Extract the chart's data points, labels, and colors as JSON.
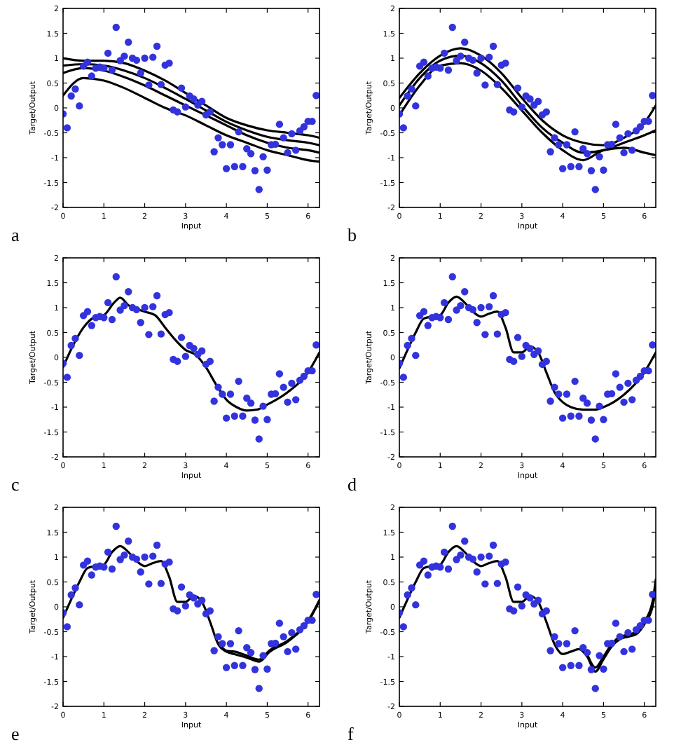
{
  "chart_data": [
    {
      "type": "scatter",
      "title": "a",
      "xlabel": "Input",
      "ylabel": "Target/Output",
      "xlim": [
        0,
        6.28
      ],
      "ylim": [
        -2,
        2
      ],
      "xticks": [
        0,
        1,
        2,
        3,
        4,
        5,
        6
      ],
      "yticks": [
        -2,
        -1.5,
        -1,
        -0.5,
        0,
        0.5,
        1,
        1.5,
        2
      ],
      "grid": false,
      "x": [
        0,
        0.1,
        0.2,
        0.3,
        0.4,
        0.5,
        0.6,
        0.7,
        0.8,
        0.9,
        1,
        1.1,
        1.2,
        1.3,
        1.4,
        1.5,
        1.6,
        1.7,
        1.8,
        1.9,
        2,
        2.1,
        2.2,
        2.3,
        2.4,
        2.5,
        2.6,
        2.7,
        2.8,
        2.9,
        3,
        3.1,
        3.2,
        3.3,
        3.4,
        3.5,
        3.6,
        3.7,
        3.8,
        3.9,
        4,
        4.1,
        4.2,
        4.3,
        4.4,
        4.5,
        4.6,
        4.7,
        4.8,
        4.9,
        5,
        5.1,
        5.2,
        5.3,
        5.4,
        5.5,
        5.6,
        5.7,
        5.8,
        5.9,
        6,
        6.1,
        6.2
      ],
      "series": [
        {
          "type": "line",
          "color": "#000000",
          "x": [
            0,
            0.5,
            1,
            1.5,
            2,
            2.5,
            3,
            3.5,
            4,
            4.5,
            5,
            5.5,
            6,
            6.28
          ],
          "values": [
            1.0,
            0.95,
            0.95,
            0.9,
            0.75,
            0.55,
            0.3,
            0.05,
            -0.2,
            -0.35,
            -0.45,
            -0.5,
            -0.55,
            -0.6
          ]
        },
        {
          "type": "line",
          "color": "#000000",
          "x": [
            0,
            0.5,
            1,
            1.5,
            2,
            2.5,
            3,
            3.5,
            4,
            4.5,
            5,
            5.5,
            6,
            6.28
          ],
          "values": [
            0.85,
            0.88,
            0.85,
            0.75,
            0.6,
            0.4,
            0.18,
            -0.05,
            -0.28,
            -0.45,
            -0.58,
            -0.65,
            -0.7,
            -0.75
          ]
        },
        {
          "type": "line",
          "color": "#000000",
          "x": [
            0,
            0.5,
            1,
            1.5,
            2,
            2.5,
            3,
            3.5,
            4,
            4.5,
            5,
            5.5,
            6,
            6.28
          ],
          "values": [
            0.7,
            0.8,
            0.75,
            0.62,
            0.45,
            0.25,
            0.05,
            -0.15,
            -0.35,
            -0.55,
            -0.7,
            -0.8,
            -0.85,
            -0.9
          ]
        },
        {
          "type": "line",
          "color": "#000000",
          "x": [
            0,
            0.5,
            1,
            1.5,
            2,
            2.5,
            3,
            3.5,
            4,
            4.5,
            5,
            5.5,
            6,
            6.28
          ],
          "values": [
            0.25,
            0.6,
            0.55,
            0.4,
            0.2,
            0.0,
            -0.15,
            -0.35,
            -0.55,
            -0.7,
            -0.85,
            -0.95,
            -1.05,
            -1.08
          ]
        },
        {
          "marker": "circle",
          "color": "#3333dd",
          "values": [
            -0.12,
            -0.4,
            0.24,
            0.38,
            0.04,
            0.84,
            0.92,
            0.64,
            0.8,
            0.82,
            0.8,
            1.1,
            0.76,
            1.62,
            0.95,
            1.04,
            1.32,
            1.0,
            0.96,
            0.7,
            1.0,
            0.46,
            1.02,
            1.24,
            0.47,
            0.86,
            0.9,
            -0.04,
            -0.08,
            0.4,
            0.02,
            0.24,
            0.18,
            0.06,
            0.13,
            -0.14,
            -0.08,
            -0.88,
            -0.6,
            -0.74,
            -1.22,
            -0.74,
            -1.18,
            -0.48,
            -1.18,
            -0.82,
            -0.92,
            -1.26,
            -1.64,
            -0.98,
            -1.25,
            -0.74,
            -0.73,
            -0.33,
            -0.6,
            -0.9,
            -0.52,
            -0.85,
            -0.46,
            -0.38,
            -0.27,
            -0.27,
            0.25
          ]
        }
      ]
    },
    {
      "type": "scatter",
      "title": "b",
      "xlabel": "Input",
      "ylabel": "Target/Output",
      "xlim": [
        0,
        6.28
      ],
      "ylim": [
        -2,
        2
      ],
      "xticks": [
        0,
        1,
        2,
        3,
        4,
        5,
        6
      ],
      "yticks": [
        -2,
        -1.5,
        -1,
        -0.5,
        0,
        0.5,
        1,
        1.5,
        2
      ],
      "grid": false,
      "x": [
        0,
        0.1,
        0.2,
        0.3,
        0.4,
        0.5,
        0.6,
        0.7,
        0.8,
        0.9,
        1,
        1.1,
        1.2,
        1.3,
        1.4,
        1.5,
        1.6,
        1.7,
        1.8,
        1.9,
        2,
        2.1,
        2.2,
        2.3,
        2.4,
        2.5,
        2.6,
        2.7,
        2.8,
        2.9,
        3,
        3.1,
        3.2,
        3.3,
        3.4,
        3.5,
        3.6,
        3.7,
        3.8,
        3.9,
        4,
        4.1,
        4.2,
        4.3,
        4.4,
        4.5,
        4.6,
        4.7,
        4.8,
        4.9,
        5,
        5.1,
        5.2,
        5.3,
        5.4,
        5.5,
        5.6,
        5.7,
        5.8,
        5.9,
        6,
        6.1,
        6.2
      ],
      "series": [
        {
          "type": "line",
          "color": "#000000",
          "x": [
            0,
            0.5,
            1,
            1.5,
            2,
            2.5,
            3,
            3.5,
            4,
            4.5,
            5,
            5.5,
            6,
            6.28
          ],
          "values": [
            0.2,
            0.7,
            1.05,
            1.2,
            1.05,
            0.7,
            0.2,
            -0.25,
            -0.55,
            -0.7,
            -0.75,
            -0.6,
            -0.3,
            0.05
          ]
        },
        {
          "type": "line",
          "color": "#000000",
          "x": [
            0,
            0.5,
            1,
            1.5,
            2,
            2.5,
            3,
            3.5,
            4,
            4.5,
            5,
            5.5,
            6,
            6.28
          ],
          "values": [
            0.05,
            0.6,
            0.95,
            1.05,
            0.9,
            0.55,
            0.05,
            -0.4,
            -0.7,
            -0.9,
            -0.85,
            -0.7,
            -0.55,
            -0.45
          ]
        },
        {
          "type": "line",
          "color": "#000000",
          "x": [
            0,
            0.5,
            1,
            1.5,
            2,
            2.5,
            3,
            3.5,
            4,
            4.5,
            5,
            5.5,
            6,
            6.28
          ],
          "values": [
            -0.15,
            0.45,
            0.85,
            0.9,
            0.75,
            0.4,
            -0.05,
            -0.5,
            -0.85,
            -1.05,
            -0.85,
            -0.8,
            -0.9,
            -0.95
          ]
        },
        {
          "marker": "circle",
          "color": "#3333dd",
          "values": [
            -0.12,
            -0.4,
            0.24,
            0.38,
            0.04,
            0.84,
            0.92,
            0.64,
            0.8,
            0.82,
            0.8,
            1.1,
            0.76,
            1.62,
            0.95,
            1.04,
            1.32,
            1.0,
            0.96,
            0.7,
            1.0,
            0.46,
            1.02,
            1.24,
            0.47,
            0.86,
            0.9,
            -0.04,
            -0.08,
            0.4,
            0.02,
            0.24,
            0.18,
            0.06,
            0.13,
            -0.14,
            -0.08,
            -0.88,
            -0.6,
            -0.74,
            -1.22,
            -0.74,
            -1.18,
            -0.48,
            -1.18,
            -0.82,
            -0.92,
            -1.26,
            -1.64,
            -0.98,
            -1.25,
            -0.74,
            -0.73,
            -0.33,
            -0.6,
            -0.9,
            -0.52,
            -0.85,
            -0.46,
            -0.38,
            -0.27,
            -0.27,
            0.25
          ]
        }
      ]
    },
    {
      "type": "scatter",
      "title": "c",
      "xlabel": "Input",
      "ylabel": "Target/Output",
      "xlim": [
        0,
        6.28
      ],
      "ylim": [
        -2,
        2
      ],
      "xticks": [
        0,
        1,
        2,
        3,
        4,
        5,
        6
      ],
      "yticks": [
        -2,
        -1.5,
        -1,
        -0.5,
        0,
        0.5,
        1,
        1.5,
        2
      ],
      "grid": false,
      "x": [
        0,
        0.1,
        0.2,
        0.3,
        0.4,
        0.5,
        0.6,
        0.7,
        0.8,
        0.9,
        1,
        1.1,
        1.2,
        1.3,
        1.4,
        1.5,
        1.6,
        1.7,
        1.8,
        1.9,
        2,
        2.1,
        2.2,
        2.3,
        2.4,
        2.5,
        2.6,
        2.7,
        2.8,
        2.9,
        3,
        3.1,
        3.2,
        3.3,
        3.4,
        3.5,
        3.6,
        3.7,
        3.8,
        3.9,
        4,
        4.1,
        4.2,
        4.3,
        4.4,
        4.5,
        4.6,
        4.7,
        4.8,
        4.9,
        5,
        5.1,
        5.2,
        5.3,
        5.4,
        5.5,
        5.6,
        5.7,
        5.8,
        5.9,
        6,
        6.1,
        6.2
      ],
      "series": [
        {
          "type": "line",
          "color": "#000000",
          "x": [
            0,
            0.25,
            0.5,
            0.75,
            1,
            1.25,
            1.4,
            1.6,
            2,
            2.25,
            2.5,
            2.75,
            3,
            3.25,
            3.5,
            3.75,
            4,
            4.25,
            4.5,
            4.75,
            5,
            5.5,
            6,
            6.28
          ],
          "values": [
            -0.2,
            0.25,
            0.6,
            0.8,
            0.85,
            1.1,
            1.2,
            1.05,
            0.92,
            0.85,
            0.6,
            0.35,
            0.15,
            0.05,
            -0.2,
            -0.55,
            -0.85,
            -1.0,
            -1.07,
            -1.05,
            -0.95,
            -0.7,
            -0.3,
            0.1
          ]
        },
        {
          "marker": "circle",
          "color": "#3333dd",
          "values": [
            -0.12,
            -0.4,
            0.24,
            0.38,
            0.04,
            0.84,
            0.92,
            0.64,
            0.8,
            0.82,
            0.8,
            1.1,
            0.76,
            1.62,
            0.95,
            1.04,
            1.32,
            1.0,
            0.96,
            0.7,
            1.0,
            0.46,
            1.02,
            1.24,
            0.47,
            0.86,
            0.9,
            -0.04,
            -0.08,
            0.4,
            0.02,
            0.24,
            0.18,
            0.06,
            0.13,
            -0.14,
            -0.08,
            -0.88,
            -0.6,
            -0.74,
            -1.22,
            -0.74,
            -1.18,
            -0.48,
            -1.18,
            -0.82,
            -0.92,
            -1.26,
            -1.64,
            -0.98,
            -1.25,
            -0.74,
            -0.73,
            -0.33,
            -0.6,
            -0.9,
            -0.52,
            -0.85,
            -0.46,
            -0.38,
            -0.27,
            -0.27,
            0.25
          ]
        }
      ]
    },
    {
      "type": "scatter",
      "title": "d",
      "xlabel": "Input",
      "ylabel": "Target/Output",
      "xlim": [
        0,
        6.28
      ],
      "ylim": [
        -2,
        2
      ],
      "xticks": [
        0,
        1,
        2,
        3,
        4,
        5,
        6
      ],
      "yticks": [
        -2,
        -1.5,
        -1,
        -0.5,
        0,
        0.5,
        1,
        1.5,
        2
      ],
      "grid": false,
      "x": [
        0,
        0.1,
        0.2,
        0.3,
        0.4,
        0.5,
        0.6,
        0.7,
        0.8,
        0.9,
        1,
        1.1,
        1.2,
        1.3,
        1.4,
        1.5,
        1.6,
        1.7,
        1.8,
        1.9,
        2,
        2.1,
        2.2,
        2.3,
        2.4,
        2.5,
        2.6,
        2.7,
        2.8,
        2.9,
        3,
        3.1,
        3.2,
        3.3,
        3.4,
        3.5,
        3.6,
        3.7,
        3.8,
        3.9,
        4,
        4.1,
        4.2,
        4.3,
        4.4,
        4.5,
        4.6,
        4.7,
        4.8,
        4.9,
        5,
        5.1,
        5.2,
        5.3,
        5.4,
        5.5,
        5.6,
        5.7,
        5.8,
        5.9,
        6,
        6.1,
        6.2
      ],
      "series": [
        {
          "type": "line",
          "color": "#000000",
          "x": [
            0,
            0.2,
            0.4,
            0.6,
            0.8,
            1,
            1.2,
            1.4,
            1.6,
            1.8,
            2,
            2.2,
            2.4,
            2.6,
            2.8,
            3,
            3.2,
            3.4,
            3.6,
            3.8,
            4,
            4.2,
            4.5,
            4.8,
            5,
            5.5,
            6,
            6.28
          ],
          "values": [
            -0.22,
            0.15,
            0.5,
            0.78,
            0.82,
            0.85,
            1.1,
            1.22,
            1.1,
            0.92,
            0.82,
            0.88,
            0.92,
            0.6,
            0.1,
            0.1,
            0.22,
            0.1,
            -0.3,
            -0.7,
            -0.9,
            -1.0,
            -1.05,
            -1.05,
            -1.0,
            -0.75,
            -0.3,
            0.1
          ]
        },
        {
          "marker": "circle",
          "color": "#3333dd",
          "values": [
            -0.12,
            -0.4,
            0.24,
            0.38,
            0.04,
            0.84,
            0.92,
            0.64,
            0.8,
            0.82,
            0.8,
            1.1,
            0.76,
            1.62,
            0.95,
            1.04,
            1.32,
            1.0,
            0.96,
            0.7,
            1.0,
            0.46,
            1.02,
            1.24,
            0.47,
            0.86,
            0.9,
            -0.04,
            -0.08,
            0.4,
            0.02,
            0.24,
            0.18,
            0.06,
            0.13,
            -0.14,
            -0.08,
            -0.88,
            -0.6,
            -0.74,
            -1.22,
            -0.74,
            -1.18,
            -0.48,
            -1.18,
            -0.82,
            -0.92,
            -1.26,
            -1.64,
            -0.98,
            -1.25,
            -0.74,
            -0.73,
            -0.33,
            -0.6,
            -0.9,
            -0.52,
            -0.85,
            -0.46,
            -0.38,
            -0.27,
            -0.27,
            0.25
          ]
        }
      ]
    },
    {
      "type": "scatter",
      "title": "e",
      "xlabel": "Input",
      "ylabel": "Target/Output",
      "xlim": [
        0,
        6.28
      ],
      "ylim": [
        -2,
        2
      ],
      "xticks": [
        0,
        1,
        2,
        3,
        4,
        5,
        6
      ],
      "yticks": [
        -2,
        -1.5,
        -1,
        -0.5,
        0,
        0.5,
        1,
        1.5,
        2
      ],
      "grid": false,
      "x": [
        0,
        0.1,
        0.2,
        0.3,
        0.4,
        0.5,
        0.6,
        0.7,
        0.8,
        0.9,
        1,
        1.1,
        1.2,
        1.3,
        1.4,
        1.5,
        1.6,
        1.7,
        1.8,
        1.9,
        2,
        2.1,
        2.2,
        2.3,
        2.4,
        2.5,
        2.6,
        2.7,
        2.8,
        2.9,
        3,
        3.1,
        3.2,
        3.3,
        3.4,
        3.5,
        3.6,
        3.7,
        3.8,
        3.9,
        4,
        4.1,
        4.2,
        4.3,
        4.4,
        4.5,
        4.6,
        4.7,
        4.8,
        4.9,
        5,
        5.1,
        5.2,
        5.3,
        5.4,
        5.5,
        5.6,
        5.7,
        5.8,
        5.9,
        6,
        6.1,
        6.2
      ],
      "series": [
        {
          "type": "line",
          "color": "#000000",
          "x": [
            0,
            0.2,
            0.4,
            0.6,
            0.8,
            1,
            1.2,
            1.4,
            1.6,
            1.8,
            2,
            2.2,
            2.4,
            2.6,
            2.8,
            3,
            3.2,
            3.4,
            3.6,
            3.8,
            4,
            4.2,
            4.5,
            4.8,
            4.9,
            5,
            5.5,
            6,
            6.28
          ],
          "values": [
            -0.22,
            0.15,
            0.5,
            0.78,
            0.82,
            0.85,
            1.1,
            1.22,
            1.1,
            0.92,
            0.82,
            0.88,
            0.92,
            0.6,
            0.1,
            0.1,
            0.22,
            0.1,
            -0.3,
            -0.75,
            -0.9,
            -0.95,
            -1.02,
            -1.1,
            -1.05,
            -0.95,
            -0.7,
            -0.3,
            0.12
          ]
        },
        {
          "type": "line",
          "color": "#000000",
          "x": [
            3.8,
            4,
            4.2,
            4.5,
            4.8,
            4.9,
            5,
            5.5,
            6,
            6.28
          ],
          "values": [
            -0.72,
            -0.88,
            -0.9,
            -0.98,
            -1.06,
            -1.02,
            -0.92,
            -0.68,
            -0.28,
            0.14
          ]
        },
        {
          "marker": "circle",
          "color": "#3333dd",
          "values": [
            -0.12,
            -0.4,
            0.24,
            0.38,
            0.04,
            0.84,
            0.92,
            0.64,
            0.8,
            0.82,
            0.8,
            1.1,
            0.76,
            1.62,
            0.95,
            1.04,
            1.32,
            1.0,
            0.96,
            0.7,
            1.0,
            0.46,
            1.02,
            1.24,
            0.47,
            0.86,
            0.9,
            -0.04,
            -0.08,
            0.4,
            0.02,
            0.24,
            0.18,
            0.06,
            0.13,
            -0.14,
            -0.08,
            -0.88,
            -0.6,
            -0.74,
            -1.22,
            -0.74,
            -1.18,
            -0.48,
            -1.18,
            -0.82,
            -0.92,
            -1.26,
            -1.64,
            -0.98,
            -1.25,
            -0.74,
            -0.73,
            -0.33,
            -0.6,
            -0.9,
            -0.52,
            -0.85,
            -0.46,
            -0.38,
            -0.27,
            -0.27,
            0.25
          ]
        }
      ]
    },
    {
      "type": "scatter",
      "title": "f",
      "xlabel": "Input",
      "ylabel": "Target/Output",
      "xlim": [
        0,
        6.28
      ],
      "ylim": [
        -2,
        2
      ],
      "xticks": [
        0,
        1,
        2,
        3,
        4,
        5,
        6
      ],
      "yticks": [
        -2,
        -1.5,
        -1,
        -0.5,
        0,
        0.5,
        1,
        1.5,
        2
      ],
      "grid": false,
      "x": [
        0,
        0.1,
        0.2,
        0.3,
        0.4,
        0.5,
        0.6,
        0.7,
        0.8,
        0.9,
        1,
        1.1,
        1.2,
        1.3,
        1.4,
        1.5,
        1.6,
        1.7,
        1.8,
        1.9,
        2,
        2.1,
        2.2,
        2.3,
        2.4,
        2.5,
        2.6,
        2.7,
        2.8,
        2.9,
        3,
        3.1,
        3.2,
        3.3,
        3.4,
        3.5,
        3.6,
        3.7,
        3.8,
        3.9,
        4,
        4.1,
        4.2,
        4.3,
        4.4,
        4.5,
        4.6,
        4.7,
        4.8,
        4.9,
        5,
        5.1,
        5.2,
        5.3,
        5.4,
        5.5,
        5.6,
        5.7,
        5.8,
        5.9,
        6,
        6.1,
        6.2
      ],
      "series": [
        {
          "type": "line",
          "color": "#000000",
          "x": [
            0,
            0.2,
            0.4,
            0.6,
            0.8,
            1,
            1.2,
            1.4,
            1.6,
            1.8,
            2,
            2.2,
            2.4,
            2.6,
            2.8,
            3,
            3.2,
            3.4,
            3.6,
            3.8,
            4,
            4.2,
            4.4,
            4.6,
            4.8,
            5,
            5.2,
            5.4,
            5.6,
            5.8,
            6,
            6.2,
            6.28
          ],
          "values": [
            -0.22,
            0.15,
            0.5,
            0.78,
            0.82,
            0.85,
            1.1,
            1.22,
            1.1,
            0.92,
            0.82,
            0.88,
            0.92,
            0.6,
            0.1,
            0.1,
            0.22,
            0.1,
            -0.3,
            -0.75,
            -0.95,
            -0.9,
            -0.85,
            -1.0,
            -1.3,
            -1.05,
            -0.8,
            -0.65,
            -0.6,
            -0.55,
            -0.35,
            0.0,
            0.35
          ]
        },
        {
          "type": "line",
          "color": "#000000",
          "x": [
            4.6,
            4.8,
            5,
            5.2,
            5.4,
            5.6,
            5.8,
            6,
            6.2,
            6.28
          ],
          "values": [
            -0.95,
            -1.22,
            -1.0,
            -0.75,
            -0.6,
            -0.56,
            -0.5,
            -0.3,
            0.1,
            0.55
          ]
        },
        {
          "marker": "circle",
          "color": "#3333dd",
          "values": [
            -0.12,
            -0.4,
            0.24,
            0.38,
            0.04,
            0.84,
            0.92,
            0.64,
            0.8,
            0.82,
            0.8,
            1.1,
            0.76,
            1.62,
            0.95,
            1.04,
            1.32,
            1.0,
            0.96,
            0.7,
            1.0,
            0.46,
            1.02,
            1.24,
            0.47,
            0.86,
            0.9,
            -0.04,
            -0.08,
            0.4,
            0.02,
            0.24,
            0.18,
            0.06,
            0.13,
            -0.14,
            -0.08,
            -0.88,
            -0.6,
            -0.74,
            -1.22,
            -0.74,
            -1.18,
            -0.48,
            -1.18,
            -0.82,
            -0.92,
            -1.26,
            -1.64,
            -0.98,
            -1.25,
            -0.74,
            -0.73,
            -0.33,
            -0.6,
            -0.9,
            -0.52,
            -0.85,
            -0.46,
            -0.38,
            -0.27,
            -0.27,
            0.25
          ]
        }
      ]
    }
  ]
}
